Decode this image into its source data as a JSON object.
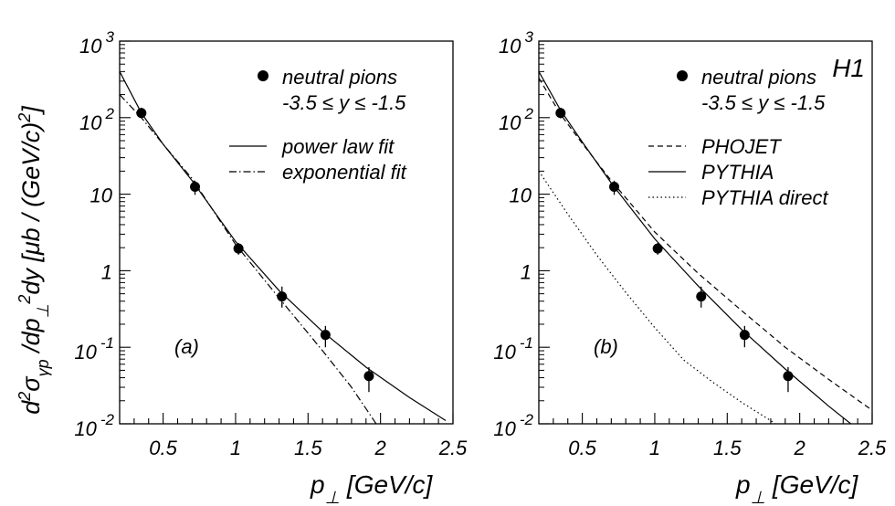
{
  "figure": {
    "ylabel": {
      "pre": "d",
      "sup1": "2",
      "sigma": "σ",
      "sub_gp": "γp",
      "mid1": " /dp",
      "sub_perp": "⊥",
      "sup2": "2",
      "mid2": "dy [μb / (GeV/c)",
      "sup3": "2",
      "end": "]"
    },
    "xlabel": {
      "main": "p",
      "sub": "⊥",
      "rest": " [GeV/c]"
    }
  },
  "chart_data": [
    {
      "type": "scatter",
      "panel_label": "(a)",
      "xlim": [
        0.2,
        2.5
      ],
      "ylim": [
        0.01,
        1000
      ],
      "yscale": "log",
      "x_ticks": [
        "0.5",
        "1",
        "1.5",
        "2",
        "2.5"
      ],
      "y_ticks": [
        {
          "value": 1000,
          "base": "10",
          "exp": "3"
        },
        {
          "value": 100,
          "base": "10",
          "exp": "2"
        },
        {
          "value": 10,
          "base": "10",
          "exp": ""
        },
        {
          "value": 1,
          "base": "1",
          "exp": ""
        },
        {
          "value": 0.1,
          "base": "10",
          "exp": "-1"
        },
        {
          "value": 0.01,
          "base": "10",
          "exp": "-2"
        }
      ],
      "legend_position": "top-right",
      "legend": {
        "marker_label": "neutral pions",
        "range_label": "-3.5 ≤ y ≤ -1.5",
        "items": [
          {
            "label": "power law fit",
            "dash": "solid"
          },
          {
            "label": "exponential fit",
            "dash": "dashdot"
          }
        ]
      },
      "points": {
        "name": "neutral pions",
        "x": [
          0.35,
          0.72,
          1.02,
          1.32,
          1.62,
          1.92
        ],
        "y": [
          115,
          12.5,
          1.95,
          0.46,
          0.145,
          0.042
        ],
        "err_lo": [
          98,
          9.8,
          1.62,
          0.33,
          0.1,
          0.026
        ],
        "err_hi": [
          135,
          15.0,
          2.3,
          0.62,
          0.19,
          0.055
        ]
      },
      "series": [
        {
          "name": "power law fit",
          "dash": "solid",
          "x": [
            0.2,
            0.35,
            0.5,
            0.7,
            1.0,
            1.3,
            1.6,
            1.9,
            2.2,
            2.45
          ],
          "y": [
            400,
            115,
            45,
            15,
            2.4,
            0.55,
            0.16,
            0.055,
            0.022,
            0.011
          ]
        },
        {
          "name": "exponential fit",
          "dash": "dashdot",
          "x": [
            0.2,
            0.35,
            0.5,
            0.7,
            1.0,
            1.3,
            1.6,
            1.8,
            1.97
          ],
          "y": [
            200,
            100,
            45,
            16,
            2.2,
            0.44,
            0.09,
            0.03,
            0.01
          ]
        }
      ]
    },
    {
      "type": "scatter",
      "panel_label": "(b)",
      "corner_label": "H1",
      "xlim": [
        0.2,
        2.5
      ],
      "ylim": [
        0.01,
        1000
      ],
      "yscale": "log",
      "x_ticks": [
        "0.5",
        "1",
        "1.5",
        "2",
        "2.5"
      ],
      "y_ticks": [
        {
          "value": 1000,
          "base": "10",
          "exp": "3"
        },
        {
          "value": 100,
          "base": "10",
          "exp": "2"
        },
        {
          "value": 10,
          "base": "10",
          "exp": ""
        },
        {
          "value": 1,
          "base": "1",
          "exp": ""
        },
        {
          "value": 0.1,
          "base": "10",
          "exp": "-1"
        },
        {
          "value": 0.01,
          "base": "10",
          "exp": "-2"
        }
      ],
      "legend_position": "top-right",
      "legend": {
        "marker_label": "neutral pions",
        "range_label": "-3.5 ≤ y ≤ -1.5",
        "items": [
          {
            "label": "PHOJET",
            "dash": "dashed"
          },
          {
            "label": "PYTHIA",
            "dash": "solid"
          },
          {
            "label": "PYTHIA direct",
            "dash": "dotted"
          }
        ]
      },
      "points": {
        "name": "neutral pions",
        "x": [
          0.35,
          0.72,
          1.02,
          1.32,
          1.62,
          1.92
        ],
        "y": [
          115,
          12.5,
          1.95,
          0.46,
          0.145,
          0.042
        ],
        "err_lo": [
          98,
          9.8,
          1.62,
          0.33,
          0.1,
          0.026
        ],
        "err_hi": [
          135,
          15.0,
          2.3,
          0.62,
          0.19,
          0.055
        ]
      },
      "series": [
        {
          "name": "PHOJET",
          "dash": "dashed",
          "x": [
            0.2,
            0.35,
            0.5,
            0.7,
            1.0,
            1.3,
            1.6,
            1.9,
            2.2,
            2.5
          ],
          "y": [
            330,
            110,
            46,
            15,
            3.2,
            0.92,
            0.3,
            0.1,
            0.038,
            0.015
          ]
        },
        {
          "name": "PYTHIA",
          "dash": "solid",
          "x": [
            0.2,
            0.35,
            0.5,
            0.7,
            1.0,
            1.3,
            1.6,
            1.9,
            2.2,
            2.5
          ],
          "y": [
            400,
            125,
            48,
            14,
            2.6,
            0.63,
            0.17,
            0.052,
            0.017,
            0.006
          ]
        },
        {
          "name": "PYTHIA direct",
          "dash": "dotted",
          "x": [
            0.2,
            0.4,
            0.6,
            0.8,
            1.0,
            1.2,
            1.4,
            1.6,
            1.8,
            2.0
          ],
          "y": [
            20,
            5.5,
            1.6,
            0.52,
            0.18,
            0.068,
            0.035,
            0.019,
            0.011,
            0.006
          ]
        }
      ]
    }
  ]
}
